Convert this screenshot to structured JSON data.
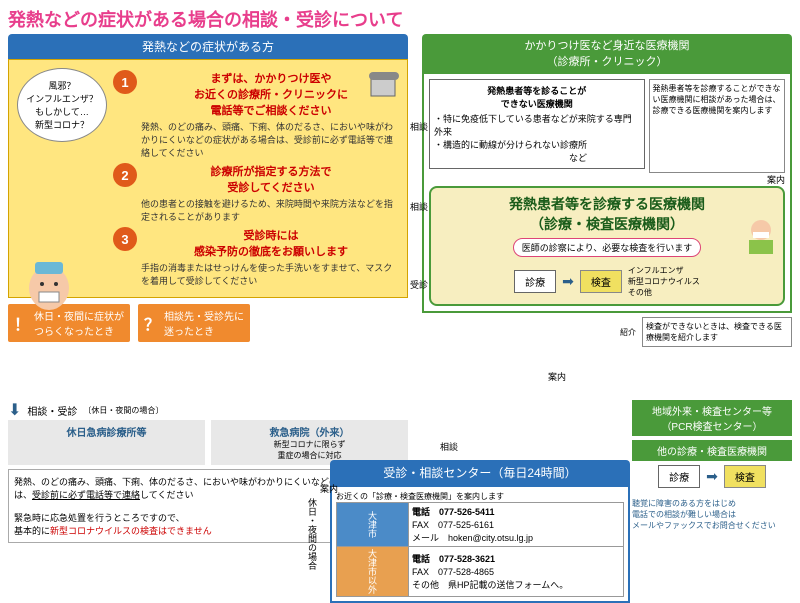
{
  "title": "発熱などの症状がある場合の相談・受診について",
  "colors": {
    "title": "#e83e8c",
    "blue": "#2b70b8",
    "green": "#4a9a3a",
    "orange": "#f08a2e",
    "yellow_bg": "#ffe680",
    "circ": "#e05a1a",
    "red": "#c00",
    "big_yellow": "#f7eec0"
  },
  "left": {
    "header": "発熱などの症状がある方",
    "bubble": "風邪？\nインフルエンザ？\nもしかして…\n新型コロナ？",
    "steps": [
      {
        "n": "1",
        "title": "まずは、かかりつけ医や\nお近くの診療所・クリニックに\n電話等でご相談ください",
        "body": "発熱、のどの痛み、頭痛、下痢、体のだるさ、においや味がわかりにくいなどの症状がある場合は、受診前に必ず電話等で連絡してください"
      },
      {
        "n": "2",
        "title": "診療所が指定する方法で\n受診してください",
        "body": "他の患者との接触を避けるため、来院時間や来院方法などを指定されることがあります"
      },
      {
        "n": "3",
        "title": "受診時には\n感染予防の徹底をお願いします",
        "body": "手指の消毒またはせっけんを使った手洗いをすませて、マスクを着用して受診してください"
      }
    ],
    "orange1": "休日・夜間に症状が\nつらくなったとき",
    "orange2": "相談先・受診先に\n迷ったとき"
  },
  "right": {
    "header": "かかりつけ医など身近な医療機関\n（診療所・クリニック）",
    "cannot_title": "発熱患者等を診ることが\nできない医療機関",
    "cannot_body": "・特に免疫低下している患者などが来院する専門外来\n・構造的に動線が分けられない診療所\n　　　　　　　　　　　　　　　など",
    "side_note": "発熱患者等を診療することができない医療機関に相談があった場合は、診療できる医療機関を案内します",
    "big_title": "発熱患者等を診療する医療機関\n（診療・検査医療機関）",
    "pill": "医師の診察により、必要な検査を行います",
    "exam": "診療",
    "test": "検査",
    "test_note": "インフルエンザ\n新型コロナウイルス\nその他",
    "intro_note": "検査ができないときは、検査できる医療機関を紹介します"
  },
  "bottom_left": {
    "consult_label": "相談・受診",
    "note": "〔休日・夜間の場合〕",
    "box1": {
      "hdr": "休日急病診療所等"
    },
    "box2": {
      "hdr": "救急病院（外来）",
      "body": "新型コロナに限らず\n重症の場合に対応"
    },
    "warn": "発熱、のどの痛み、頭痛、下痢、体のだるさ、においや味がわかりにくいなどの症状がある場合は、受診前に必ず電話等で連絡してください\n\n緊急時に応急処置を行うところですので、\n基本的に新型コロナウイルスの検査はできません"
  },
  "center": {
    "header": "受診・相談センター（毎日24時間）",
    "intro": "お近くの「診療・検査医療機関」を案内します",
    "rows": [
      {
        "area": "大津市",
        "tel_l": "電話",
        "tel": "077-526-5411",
        "fax_l": "FAX",
        "fax": "077-525-6161",
        "mail_l": "メール",
        "mail": "hoken@city.otsu.lg.jp"
      },
      {
        "area": "大津市以外",
        "tel_l": "電話",
        "tel": "077-528-3621",
        "fax_l": "FAX",
        "fax": "077-528-4865",
        "mail_l": "その他",
        "mail": "県HP記載の送信フォームへ。"
      }
    ],
    "side": "休日・夜間の場合"
  },
  "br": {
    "bar1": "地域外来・検査センター等\n（PCR検査センター）",
    "bar2": "他の診療・検査医療機関",
    "exam": "診療",
    "test": "検査",
    "note": "聴覚に障害のある方をはじめ\n電話での相談が難しい場合は\nメールやファックスでお問合せください"
  },
  "labels": {
    "soudan": "相談",
    "annai": "案内",
    "jushin": "受診",
    "shoukai": "紹介"
  }
}
